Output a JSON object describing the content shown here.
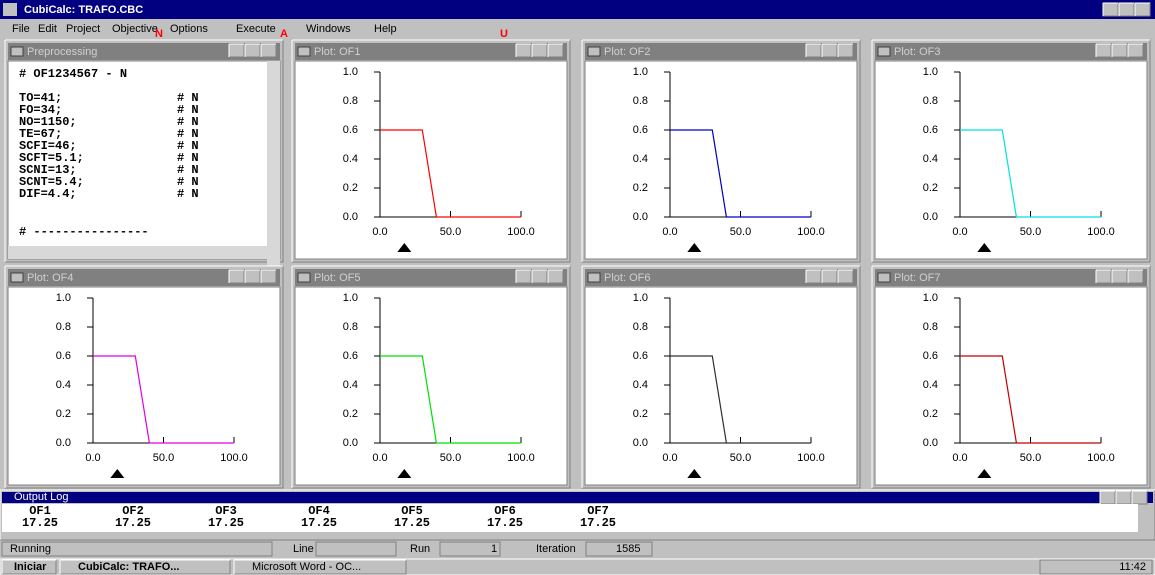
{
  "app": {
    "title": "CubiCalc: TRAFO.CBC",
    "menu": [
      "File",
      "Edit",
      "Project",
      "Objective",
      "Options",
      "Execute",
      "Windows",
      "Help"
    ],
    "annotations": [
      "N",
      "A",
      "U"
    ]
  },
  "preprocessing": {
    "title": "Preprocessing",
    "header": "# OF1234567   - N",
    "lines": [
      [
        "TO=41;",
        "# N"
      ],
      [
        "FO=34;",
        "# N"
      ],
      [
        "NO=1150;",
        "# N"
      ],
      [
        "TE=67;",
        "# N"
      ],
      [
        "SCFI=46;",
        "# N"
      ],
      [
        "SCFT=5.1;",
        "# N"
      ],
      [
        "SCNI=13;",
        "# N"
      ],
      [
        "SCNT=5.4;",
        "# N"
      ],
      [
        "DIF=4.4;",
        "# N"
      ]
    ],
    "footer": "# ----------------"
  },
  "plots": [
    {
      "title": "Plot: OF1",
      "color": "#ff0000",
      "x": [
        0,
        30,
        40,
        100
      ],
      "y": [
        0.6,
        0.6,
        0,
        0
      ],
      "marker": 17.25,
      "xlim": [
        0,
        100
      ],
      "ylim": [
        0,
        1
      ],
      "xticks": [
        {
          "value": 0,
          "label": "0.0"
        },
        {
          "value": 50,
          "label": "50.0"
        },
        {
          "value": 100,
          "label": "100.0"
        }
      ],
      "yticks": [
        {
          "value": 0,
          "label": "0.0"
        },
        {
          "value": 0.2,
          "label": "0.2"
        },
        {
          "value": 0.4,
          "label": "0.4"
        },
        {
          "value": 0.6,
          "label": "0.6"
        },
        {
          "value": 0.8,
          "label": "0.8"
        },
        {
          "value": 1,
          "label": "1.0"
        }
      ]
    },
    {
      "title": "Plot: OF2",
      "color": "#0000c0",
      "x": [
        0,
        30,
        40,
        100
      ],
      "y": [
        0.6,
        0.6,
        0,
        0
      ],
      "marker": 17.25,
      "xlim": [
        0,
        100
      ],
      "ylim": [
        0,
        1
      ],
      "xticks": [
        {
          "value": 0,
          "label": "0.0"
        },
        {
          "value": 50,
          "label": "50.0"
        },
        {
          "value": 100,
          "label": "100.0"
        }
      ],
      "yticks": [
        {
          "value": 0,
          "label": "0.0"
        },
        {
          "value": 0.2,
          "label": "0.2"
        },
        {
          "value": 0.4,
          "label": "0.4"
        },
        {
          "value": 0.6,
          "label": "0.6"
        },
        {
          "value": 0.8,
          "label": "0.8"
        },
        {
          "value": 1,
          "label": "1.0"
        }
      ]
    },
    {
      "title": "Plot: OF3",
      "color": "#00e0e0",
      "x": [
        0,
        30,
        40,
        100
      ],
      "y": [
        0.6,
        0.6,
        0,
        0
      ],
      "marker": 17.25,
      "xlim": [
        0,
        100
      ],
      "ylim": [
        0,
        1
      ],
      "xticks": [
        {
          "value": 0,
          "label": "0.0"
        },
        {
          "value": 50,
          "label": "50.0"
        },
        {
          "value": 100,
          "label": "100.0"
        }
      ],
      "yticks": [
        {
          "value": 0,
          "label": "0.0"
        },
        {
          "value": 0.2,
          "label": "0.2"
        },
        {
          "value": 0.4,
          "label": "0.4"
        },
        {
          "value": 0.6,
          "label": "0.6"
        },
        {
          "value": 0.8,
          "label": "0.8"
        },
        {
          "value": 1,
          "label": "1.0"
        }
      ]
    },
    {
      "title": "Plot: OF4",
      "color": "#e000e0",
      "x": [
        0,
        30,
        40,
        100
      ],
      "y": [
        0.6,
        0.6,
        0,
        0
      ],
      "marker": 17.25,
      "xlim": [
        0,
        100
      ],
      "ylim": [
        0,
        1
      ],
      "xticks": [
        {
          "value": 0,
          "label": "0.0"
        },
        {
          "value": 50,
          "label": "50.0"
        },
        {
          "value": 100,
          "label": "100.0"
        }
      ],
      "yticks": [
        {
          "value": 0,
          "label": "0.0"
        },
        {
          "value": 0.2,
          "label": "0.2"
        },
        {
          "value": 0.4,
          "label": "0.4"
        },
        {
          "value": 0.6,
          "label": "0.6"
        },
        {
          "value": 0.8,
          "label": "0.8"
        },
        {
          "value": 1,
          "label": "1.0"
        }
      ]
    },
    {
      "title": "Plot: OF5",
      "color": "#00e000",
      "x": [
        0,
        30,
        40,
        100
      ],
      "y": [
        0.6,
        0.6,
        0,
        0
      ],
      "marker": 17.25,
      "xlim": [
        0,
        100
      ],
      "ylim": [
        0,
        1
      ],
      "xticks": [
        {
          "value": 0,
          "label": "0.0"
        },
        {
          "value": 50,
          "label": "50.0"
        },
        {
          "value": 100,
          "label": "100.0"
        }
      ],
      "yticks": [
        {
          "value": 0,
          "label": "0.0"
        },
        {
          "value": 0.2,
          "label": "0.2"
        },
        {
          "value": 0.4,
          "label": "0.4"
        },
        {
          "value": 0.6,
          "label": "0.6"
        },
        {
          "value": 0.8,
          "label": "0.8"
        },
        {
          "value": 1,
          "label": "1.0"
        }
      ]
    },
    {
      "title": "Plot: OF6",
      "color": "#303030",
      "x": [
        0,
        30,
        40,
        100
      ],
      "y": [
        0.6,
        0.6,
        0,
        0
      ],
      "marker": 17.25,
      "xlim": [
        0,
        100
      ],
      "ylim": [
        0,
        1
      ],
      "xticks": [
        {
          "value": 0,
          "label": "0.0"
        },
        {
          "value": 50,
          "label": "50.0"
        },
        {
          "value": 100,
          "label": "100.0"
        }
      ],
      "yticks": [
        {
          "value": 0,
          "label": "0.0"
        },
        {
          "value": 0.2,
          "label": "0.2"
        },
        {
          "value": 0.4,
          "label": "0.4"
        },
        {
          "value": 0.6,
          "label": "0.6"
        },
        {
          "value": 0.8,
          "label": "0.8"
        },
        {
          "value": 1,
          "label": "1.0"
        }
      ]
    },
    {
      "title": "Plot: OF7",
      "color": "#c00000",
      "x": [
        0,
        30,
        40,
        100
      ],
      "y": [
        0.6,
        0.6,
        0,
        0
      ],
      "marker": 17.25,
      "xlim": [
        0,
        100
      ],
      "ylim": [
        0,
        1
      ],
      "xticks": [
        {
          "value": 0,
          "label": "0.0"
        },
        {
          "value": 50,
          "label": "50.0"
        },
        {
          "value": 100,
          "label": "100.0"
        }
      ],
      "yticks": [
        {
          "value": 0,
          "label": "0.0"
        },
        {
          "value": 0.2,
          "label": "0.2"
        },
        {
          "value": 0.4,
          "label": "0.4"
        },
        {
          "value": 0.6,
          "label": "0.6"
        },
        {
          "value": 0.8,
          "label": "0.8"
        },
        {
          "value": 1,
          "label": "1.0"
        }
      ]
    }
  ],
  "output_log": {
    "title": "Output Log",
    "columns": [
      "OF1",
      "OF2",
      "OF3",
      "OF4",
      "OF5",
      "OF6",
      "OF7"
    ],
    "values": [
      17.25,
      17.25,
      17.25,
      17.25,
      17.25,
      17.25,
      17.25
    ]
  },
  "status_bar": {
    "state": "Running",
    "line_label": "Line",
    "run_label": "Run",
    "run": 1,
    "iteration_label": "Iteration",
    "iteration": 1585
  },
  "taskbar": {
    "start": "Iniciar",
    "tasks": [
      "CubiCalc: TRAFO...",
      "Microsoft Word - OC..."
    ],
    "clock": "11:42"
  }
}
